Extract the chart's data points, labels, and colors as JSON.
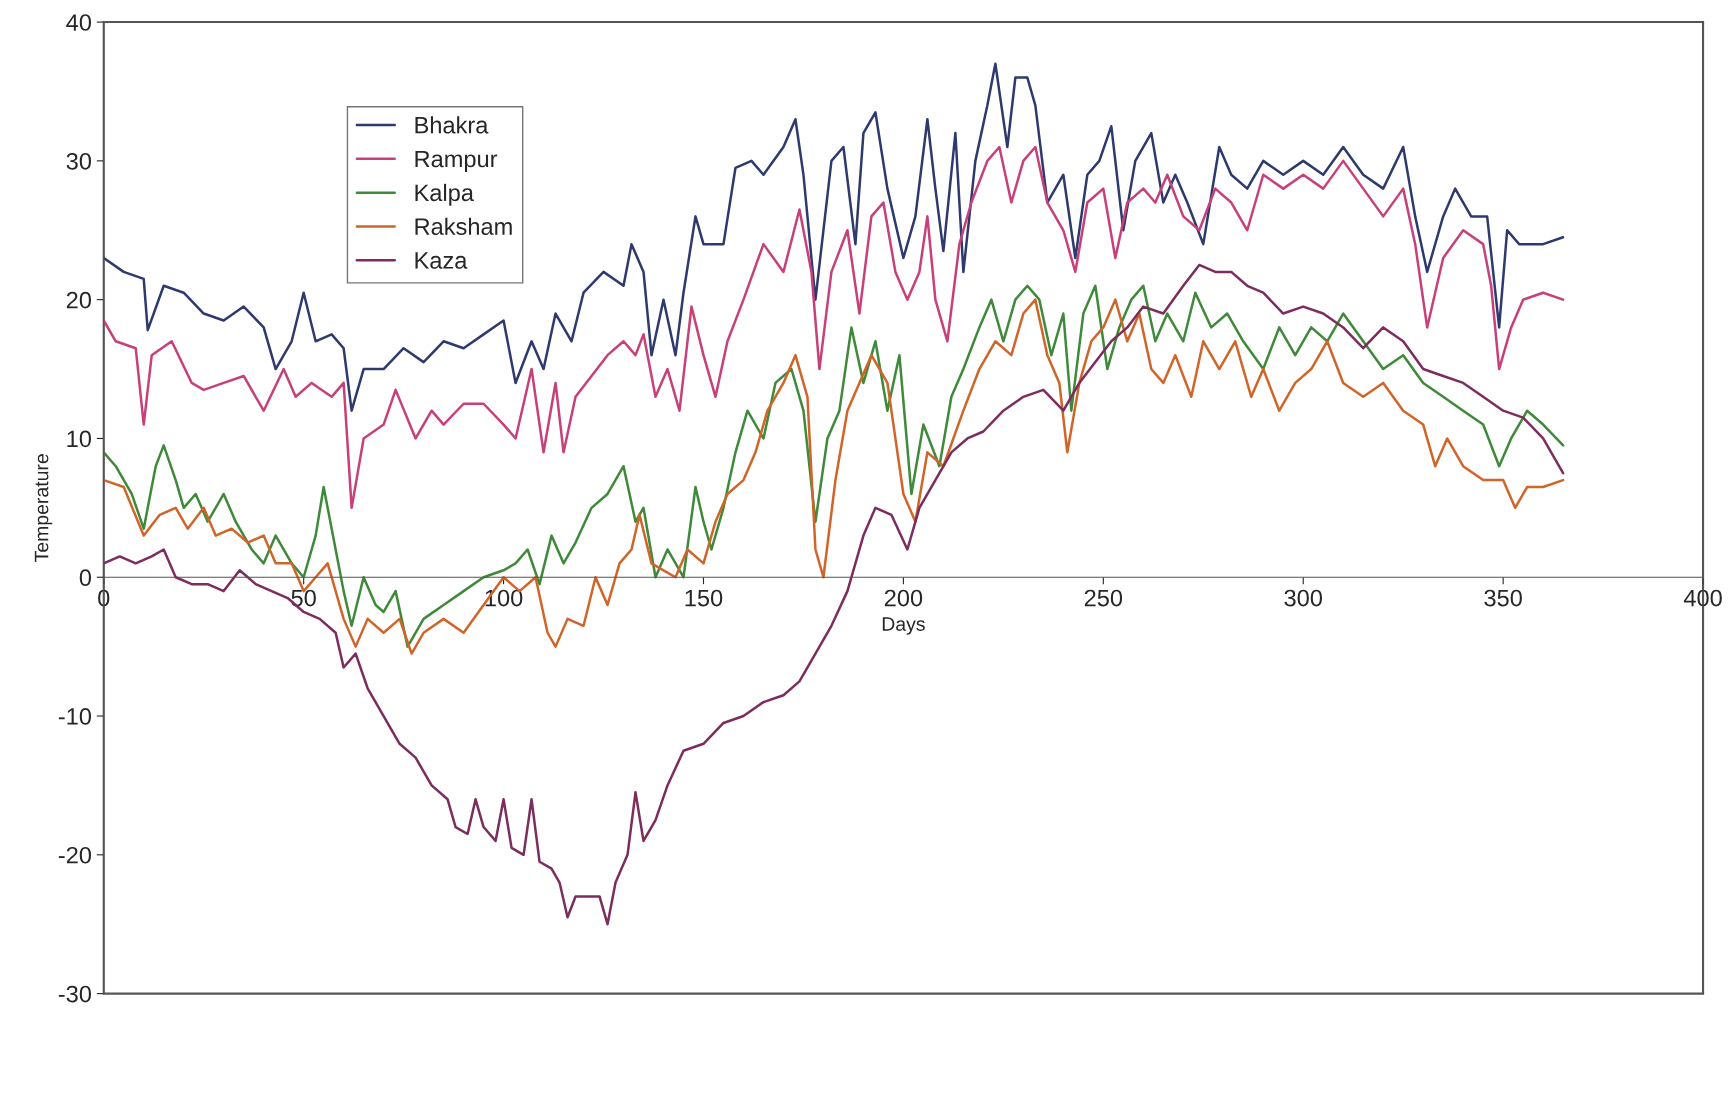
{
  "chart_data": {
    "type": "line",
    "xlabel": "Days",
    "ylabel": "Temperature",
    "xlim": [
      0,
      400
    ],
    "xticks": [
      0,
      50,
      100,
      150,
      200,
      250,
      300,
      350,
      400
    ],
    "ylim": [
      -30,
      40
    ],
    "yticks": [
      -30,
      -20,
      -10,
      0,
      10,
      20,
      30,
      40
    ],
    "grid": false,
    "legend": "top left",
    "marker": "none",
    "line_style": "solid",
    "series": [
      {
        "name": "Bhakra",
        "color": "#2e3a6e",
        "x": [
          0,
          5,
          10,
          11,
          15,
          20,
          25,
          30,
          35,
          40,
          43,
          47,
          50,
          53,
          57,
          60,
          62,
          65,
          70,
          75,
          80,
          85,
          90,
          95,
          100,
          103,
          107,
          110,
          113,
          117,
          120,
          125,
          130,
          132,
          135,
          137,
          140,
          143,
          145,
          148,
          150,
          155,
          158,
          162,
          165,
          170,
          173,
          175,
          178,
          182,
          185,
          188,
          190,
          193,
          196,
          200,
          203,
          206,
          208,
          210,
          213,
          215,
          218,
          221,
          223,
          226,
          228,
          231,
          233,
          236,
          240,
          243,
          246,
          249,
          252,
          255,
          258,
          262,
          265,
          268,
          271,
          275,
          279,
          282,
          286,
          290,
          295,
          300,
          305,
          310,
          315,
          320,
          325,
          328,
          331,
          335,
          338,
          342,
          346,
          349,
          351,
          354,
          360,
          365
        ],
        "values": [
          23,
          22,
          21.5,
          17.8,
          21,
          20.5,
          19,
          18.5,
          19.5,
          18,
          15,
          17,
          20.5,
          17,
          17.5,
          16.5,
          12,
          15,
          15,
          16.5,
          15.5,
          17,
          16.5,
          17.5,
          18.5,
          14,
          17,
          15,
          19,
          17,
          20.5,
          22,
          21,
          24,
          22,
          16,
          20,
          16,
          20.5,
          26,
          24,
          24,
          29.5,
          30,
          29,
          31,
          33,
          29,
          20,
          30,
          31,
          24,
          32,
          33.5,
          28,
          23,
          26,
          33,
          28,
          23.5,
          32,
          22,
          30,
          34,
          37,
          31,
          36,
          36,
          34,
          27,
          29,
          23,
          29,
          30,
          32.5,
          25,
          30,
          32,
          27,
          29,
          27,
          24,
          31,
          29,
          28,
          30,
          29,
          30,
          29,
          31,
          29,
          28,
          31,
          26,
          22,
          26,
          28,
          26,
          26,
          18,
          25,
          24,
          24,
          24.5
        ]
      },
      {
        "name": "Rampur",
        "color": "#c8407a",
        "x": [
          0,
          3,
          8,
          10,
          12,
          17,
          22,
          25,
          30,
          35,
          40,
          45,
          48,
          52,
          57,
          60,
          62,
          65,
          70,
          73,
          78,
          82,
          85,
          90,
          95,
          100,
          103,
          107,
          110,
          113,
          115,
          118,
          122,
          126,
          130,
          133,
          135,
          138,
          141,
          144,
          147,
          150,
          153,
          156,
          160,
          165,
          170,
          174,
          177,
          179,
          182,
          186,
          189,
          192,
          195,
          198,
          201,
          204,
          206,
          208,
          211,
          214,
          217,
          221,
          224,
          227,
          230,
          233,
          236,
          240,
          243,
          246,
          250,
          253,
          256,
          260,
          263,
          266,
          270,
          274,
          278,
          282,
          286,
          290,
          295,
          300,
          305,
          310,
          315,
          320,
          325,
          328,
          331,
          335,
          340,
          345,
          347,
          349,
          352,
          355,
          360,
          365
        ],
        "values": [
          18.5,
          17,
          16.5,
          11,
          16,
          17,
          14,
          13.5,
          14,
          14.5,
          12,
          15,
          13,
          14,
          13,
          14,
          5,
          10,
          11,
          13.5,
          10,
          12,
          11,
          12.5,
          12.5,
          11,
          10,
          15,
          9,
          14,
          9,
          13,
          14.5,
          16,
          17,
          16,
          17.5,
          13,
          15,
          12,
          19.5,
          16,
          13,
          17,
          20,
          24,
          22,
          26.5,
          22,
          15,
          22,
          25,
          19,
          26,
          27,
          22,
          20,
          22,
          26,
          20,
          17,
          24,
          27,
          30,
          31,
          27,
          30,
          31,
          27,
          25,
          22,
          27,
          28,
          23,
          27,
          28,
          27,
          29,
          26,
          25,
          28,
          27,
          25,
          29,
          28,
          29,
          28,
          30,
          28,
          26,
          28,
          24,
          18,
          23,
          25,
          24,
          21,
          15,
          18,
          20,
          20.5,
          20
        ]
      },
      {
        "name": "Kalpa",
        "color": "#3f8a3a",
        "x": [
          0,
          3,
          7,
          10,
          13,
          15,
          18,
          20,
          23,
          26,
          30,
          33,
          37,
          40,
          43,
          47,
          50,
          53,
          55,
          58,
          60,
          62,
          65,
          68,
          70,
          73,
          76,
          80,
          85,
          90,
          95,
          100,
          103,
          106,
          109,
          112,
          115,
          118,
          122,
          126,
          130,
          133,
          135,
          138,
          141,
          145,
          148,
          150,
          152,
          155,
          158,
          161,
          165,
          168,
          172,
          175,
          178,
          181,
          184,
          187,
          190,
          193,
          196,
          199,
          202,
          205,
          209,
          212,
          215,
          219,
          222,
          225,
          228,
          231,
          234,
          237,
          240,
          242,
          245,
          248,
          251,
          254,
          257,
          260,
          263,
          266,
          270,
          273,
          277,
          281,
          285,
          290,
          294,
          298,
          302,
          306,
          310,
          315,
          320,
          325,
          330,
          335,
          340,
          345,
          349,
          352,
          356,
          360,
          365
        ],
        "values": [
          9,
          8,
          6,
          3.5,
          8,
          9.5,
          7,
          5,
          6,
          4,
          6,
          4,
          2,
          1,
          3,
          1,
          0,
          3,
          6.5,
          2,
          -1,
          -3.5,
          0,
          -2,
          -2.5,
          -1,
          -5,
          -3,
          -2,
          -1,
          0,
          0.5,
          1,
          2,
          -0.5,
          3,
          1,
          2.5,
          5,
          6,
          8,
          4,
          5,
          0,
          2,
          0,
          6.5,
          4,
          2,
          5,
          9,
          12,
          10,
          14,
          15,
          12,
          4,
          10,
          12,
          18,
          14,
          17,
          12,
          16,
          6,
          11,
          8,
          13,
          15,
          18,
          20,
          17,
          20,
          21,
          20,
          16,
          19,
          12,
          19,
          21,
          15,
          18,
          20,
          21,
          17,
          19,
          17,
          20.5,
          18,
          19,
          17,
          15,
          18,
          16,
          18,
          17,
          19,
          17,
          15,
          16,
          14,
          13,
          12,
          11,
          8,
          10,
          12,
          11,
          9.5
        ]
      },
      {
        "name": "Raksham",
        "color": "#d0652a",
        "x": [
          0,
          5,
          10,
          14,
          18,
          21,
          25,
          28,
          32,
          36,
          40,
          43,
          47,
          50,
          53,
          56,
          60,
          63,
          66,
          70,
          74,
          77,
          80,
          85,
          90,
          95,
          100,
          104,
          108,
          111,
          113,
          116,
          120,
          123,
          126,
          129,
          132,
          134,
          137,
          140,
          143,
          146,
          150,
          153,
          156,
          160,
          163,
          166,
          170,
          173,
          176,
          178,
          180,
          183,
          186,
          189,
          192,
          196,
          200,
          203,
          206,
          210,
          215,
          219,
          223,
          227,
          230,
          233,
          236,
          239,
          241,
          244,
          247,
          250,
          253,
          256,
          259,
          262,
          265,
          268,
          272,
          275,
          279,
          283,
          287,
          290,
          294,
          298,
          302,
          306,
          310,
          315,
          320,
          325,
          330,
          333,
          336,
          340,
          345,
          350,
          353,
          356,
          360,
          365
        ],
        "values": [
          7,
          6.5,
          3,
          4.5,
          5,
          3.5,
          5,
          3,
          3.5,
          2.5,
          3,
          1,
          1,
          -1,
          0,
          1,
          -3,
          -5,
          -3,
          -4,
          -3,
          -5.5,
          -4,
          -3,
          -4,
          -2,
          0,
          -1,
          0,
          -4,
          -5,
          -3,
          -3.5,
          0,
          -2,
          1,
          2,
          4.5,
          1,
          0.5,
          0,
          2,
          1,
          4,
          6,
          7,
          9,
          12,
          14,
          16,
          13,
          2,
          0,
          7,
          12,
          14,
          16,
          14,
          6,
          4,
          9,
          8,
          12,
          15,
          17,
          16,
          19,
          20,
          16,
          14,
          9,
          14,
          17,
          18,
          20,
          17,
          19,
          15,
          14,
          16,
          13,
          17,
          15,
          17,
          13,
          15,
          12,
          14,
          15,
          17,
          14,
          13,
          14,
          12,
          11,
          8,
          10,
          8,
          7,
          7,
          5,
          6.5,
          6.5,
          7
        ]
      },
      {
        "name": "Kaza",
        "color": "#7c2d5e",
        "x": [
          0,
          4,
          8,
          12,
          15,
          18,
          22,
          26,
          30,
          34,
          38,
          42,
          46,
          50,
          54,
          58,
          60,
          63,
          66,
          70,
          74,
          78,
          82,
          86,
          88,
          91,
          93,
          95,
          98,
          100,
          102,
          105,
          107,
          109,
          112,
          114,
          116,
          118,
          121,
          124,
          126,
          128,
          131,
          133,
          135,
          138,
          141,
          145,
          150,
          155,
          160,
          165,
          170,
          174,
          178,
          182,
          186,
          190,
          193,
          197,
          201,
          204,
          208,
          212,
          216,
          220,
          225,
          230,
          235,
          240,
          244,
          248,
          252,
          256,
          260,
          265,
          270,
          274,
          278,
          282,
          286,
          290,
          295,
          300,
          305,
          310,
          315,
          320,
          325,
          330,
          335,
          340,
          345,
          350,
          355,
          360,
          365
        ],
        "values": [
          1,
          1.5,
          1,
          1.5,
          2,
          0,
          -0.5,
          -0.5,
          -1,
          0.5,
          -0.5,
          -1,
          -1.5,
          -2.5,
          -3,
          -4,
          -6.5,
          -5.5,
          -8,
          -10,
          -12,
          -13,
          -15,
          -16,
          -18,
          -18.5,
          -16,
          -18,
          -19,
          -16,
          -19.5,
          -20,
          -16,
          -20.5,
          -21,
          -22,
          -24.5,
          -23,
          -23,
          -23,
          -25,
          -22,
          -20,
          -15.5,
          -19,
          -17.5,
          -15,
          -12.5,
          -12,
          -10.5,
          -10,
          -9,
          -8.5,
          -7.5,
          -5.5,
          -3.5,
          -1,
          3,
          5,
          4.5,
          2,
          5,
          7,
          9,
          10,
          10.5,
          12,
          13,
          13.5,
          12,
          14,
          15.5,
          17,
          18,
          19.5,
          19,
          21,
          22.5,
          22,
          22,
          21,
          20.5,
          19,
          19.5,
          19,
          18,
          16.5,
          18,
          17,
          15,
          14.5,
          14,
          13,
          12,
          11.5,
          10,
          7.5
        ]
      }
    ]
  }
}
